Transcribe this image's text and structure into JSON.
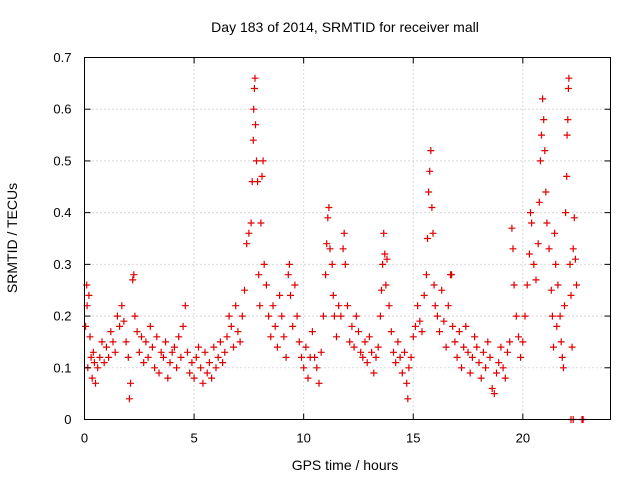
{
  "chart_data": {
    "type": "scatter",
    "title": "Day 183 of 2014, SRMTID for receiver mall",
    "xlabel": "GPS time / hours",
    "ylabel": "SRMTID / TECUs",
    "xlim": [
      0,
      24
    ],
    "ylim": [
      0,
      0.7
    ],
    "x_ticks": [
      0,
      5,
      10,
      15,
      20
    ],
    "x_tick_labels": [
      "0",
      "5",
      "10",
      "15",
      "20"
    ],
    "y_ticks": [
      0,
      0.1,
      0.2,
      0.3,
      0.4,
      0.5,
      0.6,
      0.7
    ],
    "y_tick_labels": [
      "0",
      "0.1",
      "0.2",
      "0.3",
      "0.4",
      "0.5",
      "0.6",
      "0.7"
    ],
    "grid": true,
    "marker": "+",
    "color": "#e00000",
    "series": [
      {
        "name": "SRMTID",
        "points": [
          [
            0.05,
            0.18
          ],
          [
            0.1,
            0.26
          ],
          [
            0.12,
            0.22
          ],
          [
            0.15,
            0.1
          ],
          [
            0.2,
            0.24
          ],
          [
            0.25,
            0.16
          ],
          [
            0.3,
            0.12
          ],
          [
            0.35,
            0.08
          ],
          [
            0.4,
            0.13
          ],
          [
            0.45,
            0.11
          ],
          [
            0.5,
            0.07
          ],
          [
            0.6,
            0.1
          ],
          [
            0.7,
            0.12
          ],
          [
            0.8,
            0.15
          ],
          [
            0.9,
            0.11
          ],
          [
            1.0,
            0.14
          ],
          [
            1.1,
            0.12
          ],
          [
            1.2,
            0.17
          ],
          [
            1.3,
            0.15
          ],
          [
            1.4,
            0.13
          ],
          [
            1.5,
            0.2
          ],
          [
            1.6,
            0.18
          ],
          [
            1.7,
            0.22
          ],
          [
            1.8,
            0.19
          ],
          [
            1.9,
            0.15
          ],
          [
            2.0,
            0.12
          ],
          [
            2.05,
            0.04
          ],
          [
            2.1,
            0.07
          ],
          [
            2.2,
            0.27
          ],
          [
            2.25,
            0.28
          ],
          [
            2.3,
            0.2
          ],
          [
            2.4,
            0.17
          ],
          [
            2.5,
            0.13
          ],
          [
            2.6,
            0.16
          ],
          [
            2.7,
            0.11
          ],
          [
            2.8,
            0.15
          ],
          [
            2.9,
            0.12
          ],
          [
            3.0,
            0.18
          ],
          [
            3.1,
            0.14
          ],
          [
            3.2,
            0.1
          ],
          [
            3.3,
            0.16
          ],
          [
            3.4,
            0.09
          ],
          [
            3.5,
            0.13
          ],
          [
            3.6,
            0.12
          ],
          [
            3.7,
            0.15
          ],
          [
            3.8,
            0.08
          ],
          [
            3.9,
            0.11
          ],
          [
            4.0,
            0.13
          ],
          [
            4.1,
            0.14
          ],
          [
            4.2,
            0.1
          ],
          [
            4.3,
            0.16
          ],
          [
            4.4,
            0.12
          ],
          [
            4.5,
            0.18
          ],
          [
            4.6,
            0.22
          ],
          [
            4.7,
            0.13
          ],
          [
            4.8,
            0.09
          ],
          [
            4.9,
            0.11
          ],
          [
            5.0,
            0.08
          ],
          [
            5.1,
            0.12
          ],
          [
            5.2,
            0.14
          ],
          [
            5.3,
            0.1
          ],
          [
            5.4,
            0.07
          ],
          [
            5.5,
            0.13
          ],
          [
            5.6,
            0.09
          ],
          [
            5.7,
            0.11
          ],
          [
            5.8,
            0.08
          ],
          [
            5.9,
            0.14
          ],
          [
            6.0,
            0.1
          ],
          [
            6.1,
            0.12
          ],
          [
            6.2,
            0.15
          ],
          [
            6.3,
            0.11
          ],
          [
            6.4,
            0.13
          ],
          [
            6.5,
            0.16
          ],
          [
            6.6,
            0.2
          ],
          [
            6.7,
            0.18
          ],
          [
            6.8,
            0.14
          ],
          [
            6.9,
            0.22
          ],
          [
            7.0,
            0.17
          ],
          [
            7.1,
            0.15
          ],
          [
            7.2,
            0.2
          ],
          [
            7.3,
            0.25
          ],
          [
            7.4,
            0.34
          ],
          [
            7.5,
            0.36
          ],
          [
            7.6,
            0.38
          ],
          [
            7.65,
            0.46
          ],
          [
            7.7,
            0.54
          ],
          [
            7.72,
            0.6
          ],
          [
            7.75,
            0.64
          ],
          [
            7.78,
            0.66
          ],
          [
            7.8,
            0.57
          ],
          [
            7.85,
            0.5
          ],
          [
            7.9,
            0.46
          ],
          [
            7.95,
            0.28
          ],
          [
            8.0,
            0.22
          ],
          [
            8.05,
            0.38
          ],
          [
            8.1,
            0.47
          ],
          [
            8.15,
            0.5
          ],
          [
            8.2,
            0.3
          ],
          [
            8.3,
            0.26
          ],
          [
            8.4,
            0.2
          ],
          [
            8.5,
            0.16
          ],
          [
            8.6,
            0.22
          ],
          [
            8.7,
            0.18
          ],
          [
            8.8,
            0.14
          ],
          [
            8.9,
            0.24
          ],
          [
            9.0,
            0.2
          ],
          [
            9.1,
            0.16
          ],
          [
            9.2,
            0.12
          ],
          [
            9.3,
            0.28
          ],
          [
            9.35,
            0.3
          ],
          [
            9.4,
            0.24
          ],
          [
            9.5,
            0.18
          ],
          [
            9.6,
            0.26
          ],
          [
            9.7,
            0.2
          ],
          [
            9.8,
            0.15
          ],
          [
            9.9,
            0.12
          ],
          [
            10.0,
            0.1
          ],
          [
            10.1,
            0.14
          ],
          [
            10.2,
            0.08
          ],
          [
            10.3,
            0.12
          ],
          [
            10.4,
            0.17
          ],
          [
            10.5,
            0.12
          ],
          [
            10.6,
            0.1
          ],
          [
            10.7,
            0.07
          ],
          [
            10.8,
            0.13
          ],
          [
            10.9,
            0.2
          ],
          [
            11.0,
            0.28
          ],
          [
            11.05,
            0.34
          ],
          [
            11.1,
            0.39
          ],
          [
            11.15,
            0.41
          ],
          [
            11.2,
            0.33
          ],
          [
            11.3,
            0.3
          ],
          [
            11.35,
            0.24
          ],
          [
            11.4,
            0.2
          ],
          [
            11.5,
            0.16
          ],
          [
            11.6,
            0.22
          ],
          [
            11.7,
            0.2
          ],
          [
            11.8,
            0.33
          ],
          [
            11.85,
            0.36
          ],
          [
            11.9,
            0.3
          ],
          [
            12.0,
            0.22
          ],
          [
            12.1,
            0.15
          ],
          [
            12.2,
            0.18
          ],
          [
            12.3,
            0.14
          ],
          [
            12.4,
            0.2
          ],
          [
            12.5,
            0.17
          ],
          [
            12.6,
            0.13
          ],
          [
            12.7,
            0.12
          ],
          [
            12.8,
            0.15
          ],
          [
            12.9,
            0.11
          ],
          [
            13.0,
            0.16
          ],
          [
            13.1,
            0.13
          ],
          [
            13.2,
            0.09
          ],
          [
            13.3,
            0.12
          ],
          [
            13.4,
            0.14
          ],
          [
            13.5,
            0.2
          ],
          [
            13.55,
            0.25
          ],
          [
            13.6,
            0.3
          ],
          [
            13.65,
            0.36
          ],
          [
            13.7,
            0.32
          ],
          [
            13.75,
            0.26
          ],
          [
            13.8,
            0.31
          ],
          [
            13.9,
            0.22
          ],
          [
            14.0,
            0.17
          ],
          [
            14.1,
            0.13
          ],
          [
            14.2,
            0.11
          ],
          [
            14.3,
            0.15
          ],
          [
            14.4,
            0.12
          ],
          [
            14.5,
            0.09
          ],
          [
            14.6,
            0.13
          ],
          [
            14.7,
            0.07
          ],
          [
            14.75,
            0.04
          ],
          [
            14.8,
            0.1
          ],
          [
            14.9,
            0.12
          ],
          [
            15.0,
            0.16
          ],
          [
            15.1,
            0.18
          ],
          [
            15.2,
            0.22
          ],
          [
            15.3,
            0.19
          ],
          [
            15.4,
            0.17
          ],
          [
            15.5,
            0.24
          ],
          [
            15.6,
            0.28
          ],
          [
            15.65,
            0.35
          ],
          [
            15.7,
            0.44
          ],
          [
            15.75,
            0.48
          ],
          [
            15.8,
            0.52
          ],
          [
            15.85,
            0.41
          ],
          [
            15.9,
            0.36
          ],
          [
            15.95,
            0.26
          ],
          [
            16.0,
            0.22
          ],
          [
            16.1,
            0.2
          ],
          [
            16.2,
            0.17
          ],
          [
            16.3,
            0.25
          ],
          [
            16.4,
            0.19
          ],
          [
            16.5,
            0.14
          ],
          [
            16.6,
            0.22
          ],
          [
            16.7,
            0.28
          ],
          [
            16.75,
            0.28
          ],
          [
            16.8,
            0.18
          ],
          [
            16.9,
            0.15
          ],
          [
            17.0,
            0.12
          ],
          [
            17.1,
            0.17
          ],
          [
            17.2,
            0.1
          ],
          [
            17.3,
            0.14
          ],
          [
            17.4,
            0.18
          ],
          [
            17.5,
            0.13
          ],
          [
            17.6,
            0.09
          ],
          [
            17.7,
            0.12
          ],
          [
            17.8,
            0.16
          ],
          [
            17.9,
            0.14
          ],
          [
            18.0,
            0.11
          ],
          [
            18.1,
            0.08
          ],
          [
            18.2,
            0.13
          ],
          [
            18.3,
            0.1
          ],
          [
            18.4,
            0.15
          ],
          [
            18.5,
            0.12
          ],
          [
            18.6,
            0.06
          ],
          [
            18.7,
            0.05
          ],
          [
            18.8,
            0.09
          ],
          [
            18.9,
            0.11
          ],
          [
            19.0,
            0.14
          ],
          [
            19.1,
            0.1
          ],
          [
            19.2,
            0.08
          ],
          [
            19.3,
            0.13
          ],
          [
            19.4,
            0.15
          ],
          [
            19.5,
            0.37
          ],
          [
            19.55,
            0.33
          ],
          [
            19.6,
            0.26
          ],
          [
            19.7,
            0.2
          ],
          [
            19.8,
            0.16
          ],
          [
            19.9,
            0.12
          ],
          [
            20.0,
            0.15
          ],
          [
            20.1,
            0.2
          ],
          [
            20.2,
            0.26
          ],
          [
            20.3,
            0.32
          ],
          [
            20.35,
            0.4
          ],
          [
            20.4,
            0.38
          ],
          [
            20.5,
            0.3
          ],
          [
            20.6,
            0.27
          ],
          [
            20.7,
            0.34
          ],
          [
            20.75,
            0.42
          ],
          [
            20.8,
            0.5
          ],
          [
            20.85,
            0.55
          ],
          [
            20.9,
            0.62
          ],
          [
            20.95,
            0.58
          ],
          [
            21.0,
            0.52
          ],
          [
            21.05,
            0.44
          ],
          [
            21.1,
            0.38
          ],
          [
            21.2,
            0.33
          ],
          [
            21.3,
            0.25
          ],
          [
            21.35,
            0.2
          ],
          [
            21.4,
            0.14
          ],
          [
            21.45,
            0.36
          ],
          [
            21.5,
            0.3
          ],
          [
            21.55,
            0.18
          ],
          [
            21.6,
            0.26
          ],
          [
            21.7,
            0.2
          ],
          [
            21.75,
            0.15
          ],
          [
            21.8,
            0.12
          ],
          [
            21.85,
            0.1
          ],
          [
            21.9,
            0.22
          ],
          [
            21.95,
            0.4
          ],
          [
            22.0,
            0.47
          ],
          [
            22.02,
            0.55
          ],
          [
            22.05,
            0.58
          ],
          [
            22.08,
            0.64
          ],
          [
            22.1,
            0.66
          ],
          [
            22.15,
            0.3
          ],
          [
            22.2,
            0.24
          ],
          [
            22.25,
            0.14
          ],
          [
            22.3,
            0.33
          ],
          [
            22.35,
            0.39
          ],
          [
            22.4,
            0.31
          ],
          [
            22.45,
            0.26
          ],
          [
            22.2,
            0.0
          ],
          [
            22.3,
            0.0
          ],
          [
            22.7,
            0.0
          ],
          [
            22.75,
            0.0
          ]
        ]
      }
    ]
  }
}
